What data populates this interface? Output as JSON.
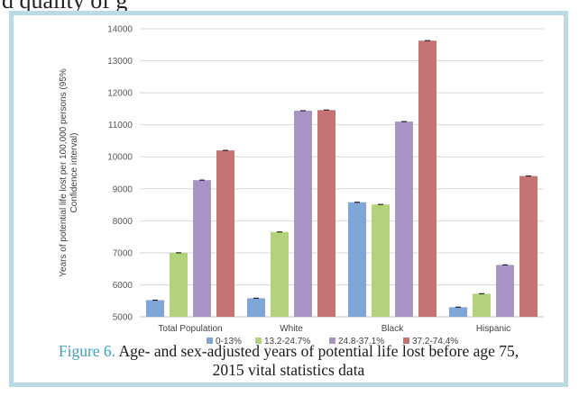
{
  "page_header": {
    "text": "d quality of g"
  },
  "caption": {
    "label": "Figure 6.",
    "text": "Age- and sex-adjusted years of potential life lost before age 75,",
    "text_line2": "2015 vital statistics data"
  },
  "colors": {
    "frame": "#b9dbe6",
    "caption_label": "#3a9fbf",
    "series": [
      "#7ea6d6",
      "#b3d37a",
      "#a993c4",
      "#c47474"
    ]
  },
  "chart_data": {
    "type": "bar",
    "title": "",
    "xlabel": "",
    "ylabel": "Years of potential life lost per 100,000 persons (95% Confidence interval)",
    "ylabel_lines": [
      "Years of potential life lost per 100,000 persons (95%",
      "Confidence interval)"
    ],
    "ylim": [
      5000,
      14000
    ],
    "yticks": [
      5000,
      6000,
      7000,
      8000,
      9000,
      10000,
      11000,
      12000,
      13000,
      14000
    ],
    "grid": true,
    "legend_position": "bottom",
    "categories": [
      "Total Population",
      "White",
      "Black",
      "Hispanic"
    ],
    "series": [
      {
        "name": "0-13%",
        "values": [
          5520,
          5580,
          8580,
          5300
        ]
      },
      {
        "name": "13.2-24.7%",
        "values": [
          7000,
          7650,
          8510,
          5720
        ]
      },
      {
        "name": "24.8-37.1%",
        "values": [
          9270,
          11440,
          11100,
          6620
        ]
      },
      {
        "name": "37.2-74.4%",
        "values": [
          10200,
          11460,
          13630,
          9400
        ]
      }
    ]
  }
}
